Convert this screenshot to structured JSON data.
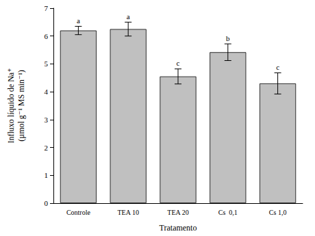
{
  "chart_data": {
    "type": "bar",
    "categories": [
      "Controle",
      "TEA 10",
      "TEA 20",
      "Cs  0,1",
      "Cs 1,0"
    ],
    "values": [
      6.2,
      6.25,
      4.55,
      5.42,
      4.3
    ],
    "errors": [
      0.15,
      0.25,
      0.27,
      0.3,
      0.38
    ],
    "annotations": [
      "a",
      "a",
      "c",
      "b",
      "c"
    ],
    "x_label": "Tratamento",
    "y_label": "Influxo líquido de Na⁺\n(µmol g⁻¹ MS min⁻¹)",
    "color": "#c0c0c0",
    "ylim": [
      0,
      7
    ],
    "yticks": [
      0,
      1,
      2,
      3,
      4,
      5,
      6,
      7
    ],
    "grid": false
  }
}
